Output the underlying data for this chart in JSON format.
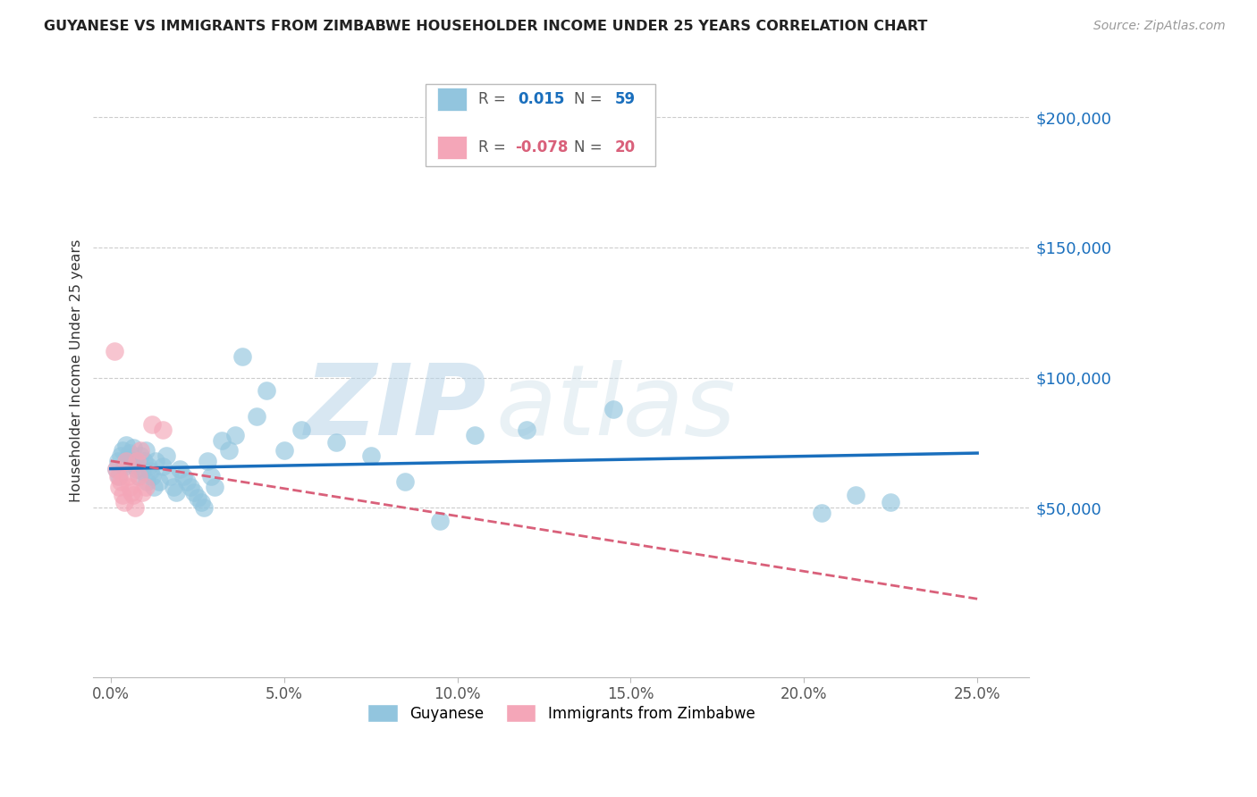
{
  "title": "GUYANESE VS IMMIGRANTS FROM ZIMBABWE HOUSEHOLDER INCOME UNDER 25 YEARS CORRELATION CHART",
  "source": "Source: ZipAtlas.com",
  "ylabel": "Householder Income Under 25 years",
  "xlabel_ticks": [
    "0.0%",
    "5.0%",
    "10.0%",
    "15.0%",
    "20.0%",
    "25.0%"
  ],
  "xlabel_vals": [
    0.0,
    5.0,
    10.0,
    15.0,
    20.0,
    25.0
  ],
  "ytick_vals": [
    50000,
    100000,
    150000,
    200000
  ],
  "ytick_labels": [
    "$50,000",
    "$100,000",
    "$150,000",
    "$200,000"
  ],
  "ylim": [
    -15000,
    220000
  ],
  "xlim": [
    -0.5,
    26.5
  ],
  "blue_R": 0.015,
  "blue_N": 59,
  "pink_R": -0.078,
  "pink_N": 20,
  "blue_color": "#92c5de",
  "pink_color": "#f4a6b8",
  "trend_blue": "#1a6fbd",
  "trend_pink": "#d9607a",
  "legend_label_blue": "Guyanese",
  "legend_label_pink": "Immigrants from Zimbabwe",
  "watermark_zip": "ZIP",
  "watermark_atlas": "atlas",
  "blue_x": [
    0.15,
    0.2,
    0.25,
    0.3,
    0.35,
    0.4,
    0.45,
    0.5,
    0.55,
    0.6,
    0.65,
    0.7,
    0.75,
    0.8,
    0.85,
    0.9,
    0.95,
    1.0,
    1.05,
    1.1,
    1.15,
    1.2,
    1.25,
    1.3,
    1.4,
    1.5,
    1.6,
    1.7,
    1.8,
    1.9,
    2.0,
    2.1,
    2.2,
    2.3,
    2.4,
    2.5,
    2.6,
    2.7,
    2.8,
    2.9,
    3.0,
    3.2,
    3.4,
    3.6,
    3.8,
    4.2,
    4.5,
    5.0,
    5.5,
    6.5,
    7.5,
    8.5,
    9.5,
    10.5,
    12.0,
    14.5,
    20.5,
    21.5,
    22.5
  ],
  "blue_y": [
    65000,
    68000,
    62000,
    70000,
    72000,
    66000,
    74000,
    69000,
    71000,
    67000,
    73000,
    68000,
    65000,
    62000,
    70000,
    64000,
    68000,
    72000,
    60000,
    66000,
    64000,
    62000,
    58000,
    68000,
    60000,
    66000,
    70000,
    62000,
    58000,
    56000,
    65000,
    62000,
    60000,
    58000,
    56000,
    54000,
    52000,
    50000,
    68000,
    62000,
    58000,
    76000,
    72000,
    78000,
    108000,
    85000,
    95000,
    72000,
    80000,
    75000,
    70000,
    60000,
    45000,
    78000,
    80000,
    88000,
    48000,
    55000,
    52000
  ],
  "pink_x": [
    0.1,
    0.15,
    0.2,
    0.25,
    0.3,
    0.35,
    0.4,
    0.45,
    0.5,
    0.55,
    0.6,
    0.65,
    0.7,
    0.75,
    0.8,
    0.85,
    0.9,
    1.0,
    1.2,
    1.5
  ],
  "pink_y": [
    110000,
    65000,
    62000,
    58000,
    60000,
    55000,
    52000,
    68000,
    62000,
    58000,
    56000,
    55000,
    50000,
    68000,
    62000,
    72000,
    56000,
    58000,
    82000,
    80000
  ],
  "blue_trend_x0": 0.0,
  "blue_trend_x1": 25.0,
  "blue_trend_y0": 65000,
  "blue_trend_y1": 71000,
  "pink_trend_x0": 0.0,
  "pink_trend_x1": 25.0,
  "pink_trend_y0": 68000,
  "pink_trend_y1": 15000
}
